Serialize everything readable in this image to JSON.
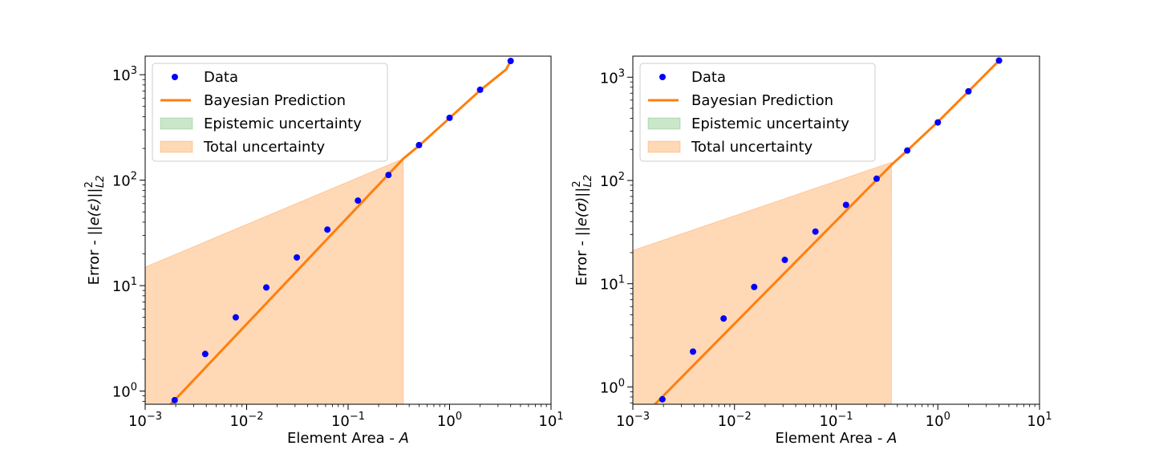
{
  "figure": {
    "background": "#ffffff",
    "colors": {
      "data": "#0000ff",
      "prediction": "#ff7f0e",
      "epistemic_fill": "#2ca02c",
      "total_fill": "#ff7f0e"
    }
  },
  "chart_data": [
    {
      "type": "scatter",
      "xscale": "log",
      "yscale": "log",
      "xlabel": "Element Area - A",
      "ylabel": "Error - ||e(ε)||²_L2",
      "xlim": [
        0.001,
        10
      ],
      "ylim": [
        0.75,
        1500
      ],
      "xtick_labels": [
        "10^-3",
        "10^-2",
        "10^-1",
        "10^0",
        "10^1"
      ],
      "ytick_labels": [
        "10^0",
        "10^1",
        "10^2",
        "10^3"
      ],
      "legend_position": "upper left",
      "legend": [
        "Data",
        "Bayesian Prediction",
        "Epistemic uncertainty",
        "Total uncertainty"
      ],
      "series": [
        {
          "name": "Data",
          "kind": "points",
          "x": [
            0.001953125,
            0.00390625,
            0.0078125,
            0.015625,
            0.03125,
            0.0625,
            0.125,
            0.25,
            0.5,
            1,
            2,
            4
          ],
          "y": [
            0.82,
            2.25,
            5.0,
            9.6,
            18.5,
            34,
            64,
            112,
            215,
            390,
            720,
            1350
          ]
        },
        {
          "name": "Bayesian Prediction",
          "kind": "line",
          "x": [
            0.00167,
            0.35,
            0.5,
            1,
            2,
            3.6,
            4
          ],
          "y": [
            0.7,
            160,
            212,
            388,
            710,
            1120,
            1350
          ]
        },
        {
          "name": "Epistemic uncertainty",
          "kind": "band",
          "x": [],
          "lower": [],
          "upper": []
        },
        {
          "name": "Total uncertainty",
          "kind": "band",
          "x": [
            0.001,
            0.35
          ],
          "lower": [
            0.3,
            0.3
          ],
          "upper": [
            15,
            160
          ]
        }
      ]
    },
    {
      "type": "scatter",
      "xscale": "log",
      "yscale": "log",
      "xlabel": "Element Area - A",
      "ylabel": "Error - ||e(σ)||²_L2",
      "xlim": [
        0.001,
        10
      ],
      "ylim": [
        0.68,
        1600
      ],
      "xtick_labels": [
        "10^-3",
        "10^-2",
        "10^-1",
        "10^0",
        "10^1"
      ],
      "ytick_labels": [
        "10^0",
        "10^1",
        "10^2",
        "10^3"
      ],
      "legend_position": "upper left",
      "legend": [
        "Data",
        "Bayesian Prediction",
        "Epistemic uncertainty",
        "Total uncertainty"
      ],
      "series": [
        {
          "name": "Data",
          "kind": "points",
          "x": [
            0.001953125,
            0.00390625,
            0.0078125,
            0.015625,
            0.03125,
            0.0625,
            0.125,
            0.25,
            0.5,
            1,
            2,
            4
          ],
          "y": [
            0.76,
            2.2,
            4.6,
            9.3,
            17,
            32,
            58,
            104,
            195,
            365,
            730,
            1450
          ]
        },
        {
          "name": "Bayesian Prediction",
          "kind": "line",
          "x": [
            0.00165,
            0.35,
            0.5,
            1,
            2,
            4
          ],
          "y": [
            0.68,
            142,
            195,
            370,
            730,
            1450
          ]
        },
        {
          "name": "Epistemic uncertainty",
          "kind": "band",
          "x": [],
          "lower": [],
          "upper": []
        },
        {
          "name": "Total uncertainty",
          "kind": "band",
          "x": [
            0.001,
            0.35
          ],
          "lower": [
            0.3,
            0.3
          ],
          "upper": [
            21,
            150
          ]
        }
      ]
    }
  ]
}
